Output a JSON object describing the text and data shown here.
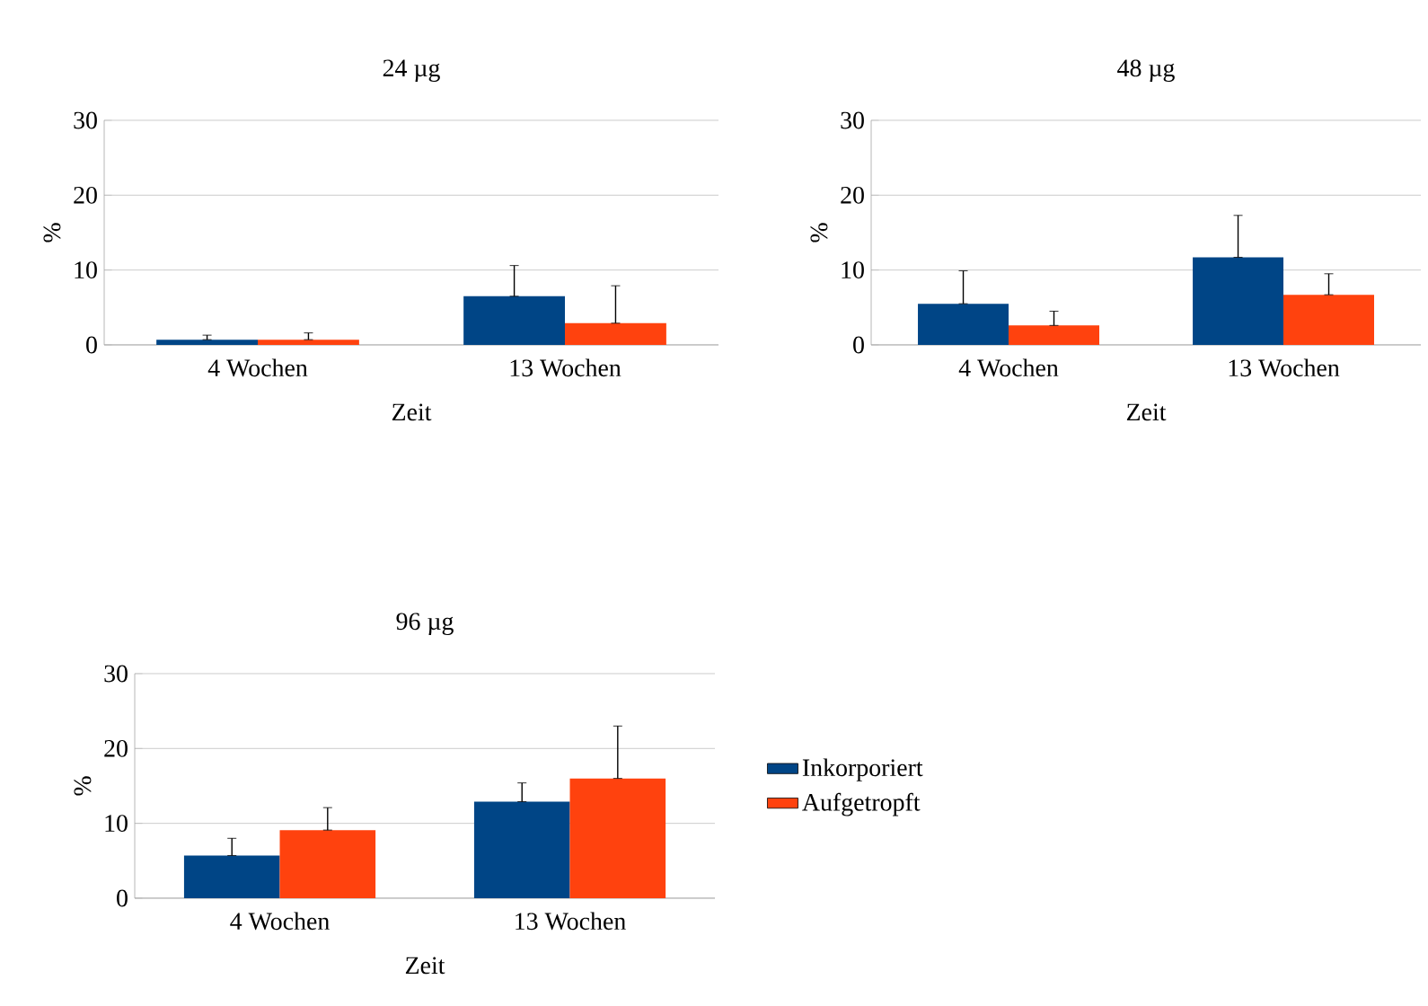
{
  "chart_data": [
    {
      "type": "bar",
      "title": "24 µg",
      "xlabel": "Zeit",
      "ylabel": "%",
      "categories": [
        "4 Wochen",
        "13 Wochen"
      ],
      "ylim": [
        0,
        30
      ],
      "yticks": [
        0,
        10,
        20,
        30
      ],
      "grid": "y",
      "legend": false,
      "series": [
        {
          "color": "#004586",
          "values": [
            0.7,
            6.5
          ],
          "errors": [
            [
              0.7,
              1.3
            ],
            [
              6.5,
              10.6
            ]
          ]
        },
        {
          "color": "#ff420e",
          "values": [
            0.7,
            2.9
          ],
          "errors": [
            [
              0.7,
              1.6
            ],
            [
              2.9,
              7.9
            ]
          ]
        }
      ]
    },
    {
      "type": "bar",
      "title": "48 µg",
      "xlabel": "Zeit",
      "ylabel": "%",
      "categories": [
        "4 Wochen",
        "13 Wochen"
      ],
      "ylim": [
        0,
        30
      ],
      "yticks": [
        0,
        10,
        20,
        30
      ],
      "grid": "y",
      "legend": false,
      "series": [
        {
          "color": "#004586",
          "values": [
            5.5,
            11.7
          ],
          "errors": [
            [
              5.5,
              9.9
            ],
            [
              11.7,
              17.3
            ]
          ]
        },
        {
          "color": "#ff420e",
          "values": [
            2.6,
            6.7
          ],
          "errors": [
            [
              2.6,
              4.5
            ],
            [
              6.7,
              9.5
            ]
          ]
        }
      ]
    },
    {
      "type": "bar",
      "title": "96 µg",
      "xlabel": "Zeit",
      "ylabel": "%",
      "categories": [
        "4 Wochen",
        "13 Wochen"
      ],
      "ylim": [
        0,
        30
      ],
      "yticks": [
        0,
        10,
        20,
        30
      ],
      "grid": "y",
      "legend": "right",
      "series": [
        {
          "name": "Inkorporiert",
          "color": "#004586",
          "values": [
            5.7,
            12.9
          ],
          "errors": [
            [
              5.7,
              8.0
            ],
            [
              12.9,
              15.4
            ]
          ]
        },
        {
          "name": "Aufgetropft",
          "color": "#ff420e",
          "values": [
            9.1,
            16.0
          ],
          "errors": [
            [
              9.1,
              12.1
            ],
            [
              16.0,
              23.0
            ]
          ]
        }
      ]
    }
  ]
}
